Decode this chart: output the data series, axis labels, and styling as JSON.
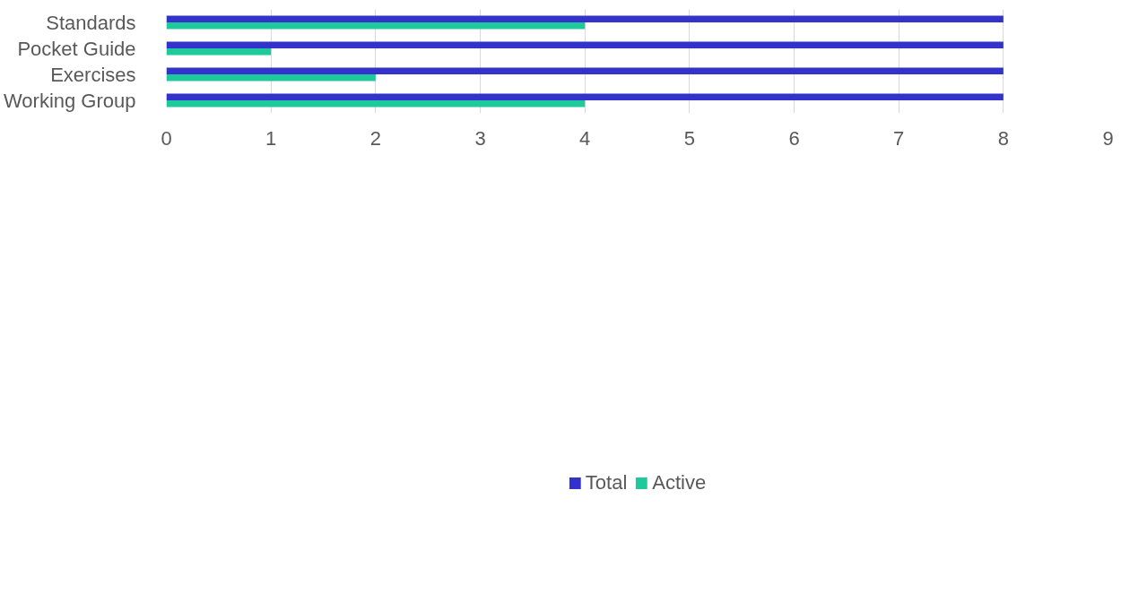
{
  "chart_data": {
    "type": "bar",
    "orientation": "horizontal",
    "categories": [
      "Standards",
      "Pocket Guide",
      "Exercises",
      "Working Group"
    ],
    "series": [
      {
        "name": "Total",
        "color": "#3333cc",
        "values": [
          8,
          8,
          8,
          8
        ]
      },
      {
        "name": "Active",
        "color": "#1ec99b",
        "values": [
          4,
          1,
          2,
          4
        ]
      }
    ],
    "xlim": [
      0,
      9
    ],
    "xticks": [
      0,
      1,
      2,
      3,
      4,
      5,
      6,
      7,
      8,
      9
    ],
    "grid": "x",
    "legend": "bottom"
  }
}
